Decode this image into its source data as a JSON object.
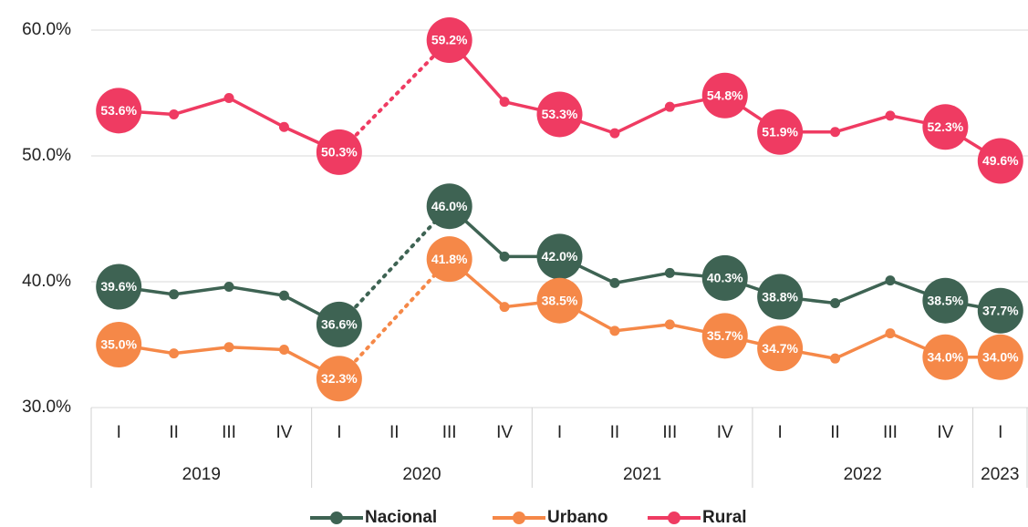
{
  "chart_data": {
    "type": "line",
    "categories": [
      "I",
      "II",
      "III",
      "IV",
      "I",
      "II",
      "III",
      "IV",
      "I",
      "II",
      "III",
      "IV",
      "I",
      "II",
      "III",
      "IV",
      "I"
    ],
    "category_groups": [
      {
        "name": "2019",
        "count": 4
      },
      {
        "name": "2020",
        "count": 4
      },
      {
        "name": "2021",
        "count": 4
      },
      {
        "name": "2022",
        "count": 4
      },
      {
        "name": "2023",
        "count": 1
      }
    ],
    "series": [
      {
        "name": "Nacional",
        "color": "#3e6353",
        "values": [
          39.6,
          39.0,
          39.6,
          38.9,
          36.6,
          null,
          46.0,
          42.0,
          42.0,
          39.9,
          40.7,
          40.3,
          38.8,
          38.3,
          40.1,
          38.5,
          37.7
        ],
        "value_labels": [
          "39.6%",
          null,
          null,
          null,
          "36.6%",
          null,
          "46.0%",
          null,
          "42.0%",
          null,
          null,
          "40.3%",
          "38.8%",
          null,
          null,
          "38.5%",
          "37.7%"
        ]
      },
      {
        "name": "Urbano",
        "color": "#f58848",
        "values": [
          35.0,
          34.3,
          34.8,
          34.6,
          32.3,
          null,
          41.8,
          38.0,
          38.5,
          36.1,
          36.6,
          35.7,
          34.7,
          33.9,
          35.9,
          34.0,
          34.0
        ],
        "value_labels": [
          "35.0%",
          null,
          null,
          null,
          "32.3%",
          null,
          "41.8%",
          null,
          "38.5%",
          null,
          null,
          "35.7%",
          "34.7%",
          null,
          null,
          "34.0%",
          "34.0%"
        ]
      },
      {
        "name": "Rural",
        "color": "#ef3b62",
        "values": [
          53.6,
          53.3,
          54.6,
          52.3,
          50.3,
          null,
          59.2,
          54.3,
          53.3,
          51.8,
          53.9,
          54.8,
          51.9,
          51.9,
          53.2,
          52.3,
          49.6
        ],
        "value_labels": [
          "53.6%",
          null,
          null,
          null,
          "50.3%",
          null,
          "59.2%",
          null,
          "53.3%",
          null,
          null,
          "54.8%",
          "51.9%",
          null,
          null,
          "52.3%",
          "49.6%"
        ]
      }
    ],
    "ylim": [
      30,
      60
    ],
    "yticks": [
      {
        "value": 30,
        "label": "30.0%"
      },
      {
        "value": 40,
        "label": "40.0%"
      },
      {
        "value": 50,
        "label": "50.0%"
      },
      {
        "value": 60,
        "label": "60.0%"
      }
    ],
    "grid": true,
    "legend": "bottom"
  }
}
